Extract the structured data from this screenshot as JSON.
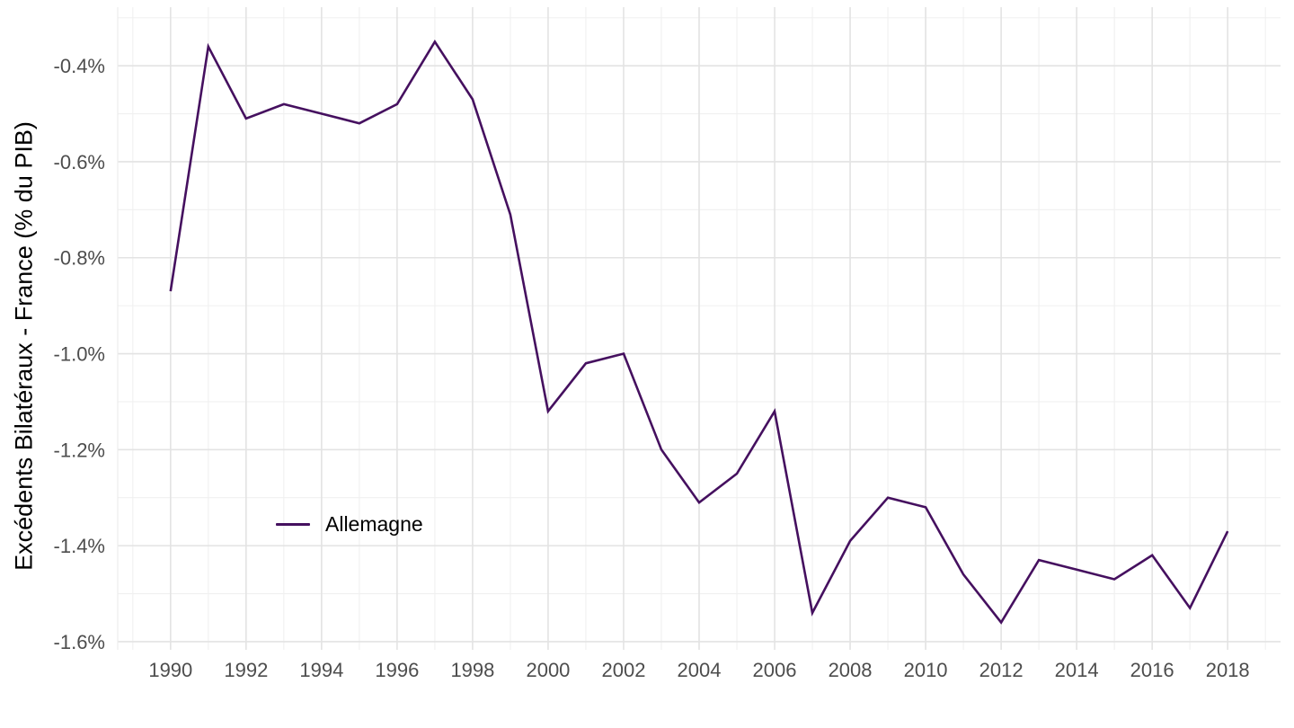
{
  "chart_data": {
    "type": "line",
    "title": "",
    "xlabel": "",
    "ylabel": "Excédents Bilatéraux - France (% du PIB)",
    "x": [
      1990,
      1991,
      1992,
      1993,
      1994,
      1995,
      1996,
      1997,
      1998,
      1999,
      2000,
      2001,
      2002,
      2003,
      2004,
      2005,
      2006,
      2007,
      2008,
      2009,
      2010,
      2011,
      2012,
      2013,
      2014,
      2015,
      2016,
      2017,
      2018
    ],
    "series": [
      {
        "name": "Allemagne",
        "color": "#45105f",
        "values": [
          -0.87,
          -0.36,
          -0.51,
          -0.48,
          -0.5,
          -0.52,
          -0.48,
          -0.35,
          -0.47,
          -0.71,
          -1.12,
          -1.02,
          -1.0,
          -1.2,
          -1.31,
          -1.25,
          -1.12,
          -1.54,
          -1.39,
          -1.3,
          -1.32,
          -1.46,
          -1.56,
          -1.43,
          -1.45,
          -1.47,
          -1.42,
          -1.53,
          -1.37
        ]
      }
    ],
    "x_ticks": {
      "major": [
        1990,
        1992,
        1994,
        1996,
        1998,
        2000,
        2002,
        2004,
        2006,
        2008,
        2010,
        2012,
        2014,
        2016,
        2018
      ],
      "labels": [
        "1990",
        "1992",
        "1994",
        "1996",
        "1998",
        "2000",
        "2002",
        "2004",
        "2006",
        "2008",
        "2010",
        "2012",
        "2014",
        "2016",
        "2018"
      ],
      "minor": [
        1989,
        1991,
        1993,
        1995,
        1997,
        1999,
        2001,
        2003,
        2005,
        2007,
        2009,
        2011,
        2013,
        2015,
        2017,
        2019
      ]
    },
    "y_ticks": {
      "major": [
        -0.4,
        -0.6,
        -0.8,
        -1.0,
        -1.2,
        -1.4,
        -1.6
      ],
      "labels": [
        "-0.4%",
        "-0.6%",
        "-0.8%",
        "-1.0%",
        "-1.2%",
        "-1.4%",
        "-1.6%"
      ],
      "minor": [
        -0.3,
        -0.5,
        -0.7,
        -0.9,
        -1.1,
        -1.3,
        -1.5
      ]
    },
    "xlim": [
      1988.6,
      2019.4
    ],
    "ylim": [
      -1.617,
      -0.278
    ],
    "grid": true,
    "legend_position": "inside-bottom-left",
    "colors": {
      "background": "#ffffff",
      "grid_major": "#e3e3e3",
      "grid_minor": "#f0f0f0",
      "panel_edge": "#ececec",
      "tick_label": "#4d4d4d",
      "axis_title": "#000000",
      "legend_label": "#000000"
    }
  }
}
